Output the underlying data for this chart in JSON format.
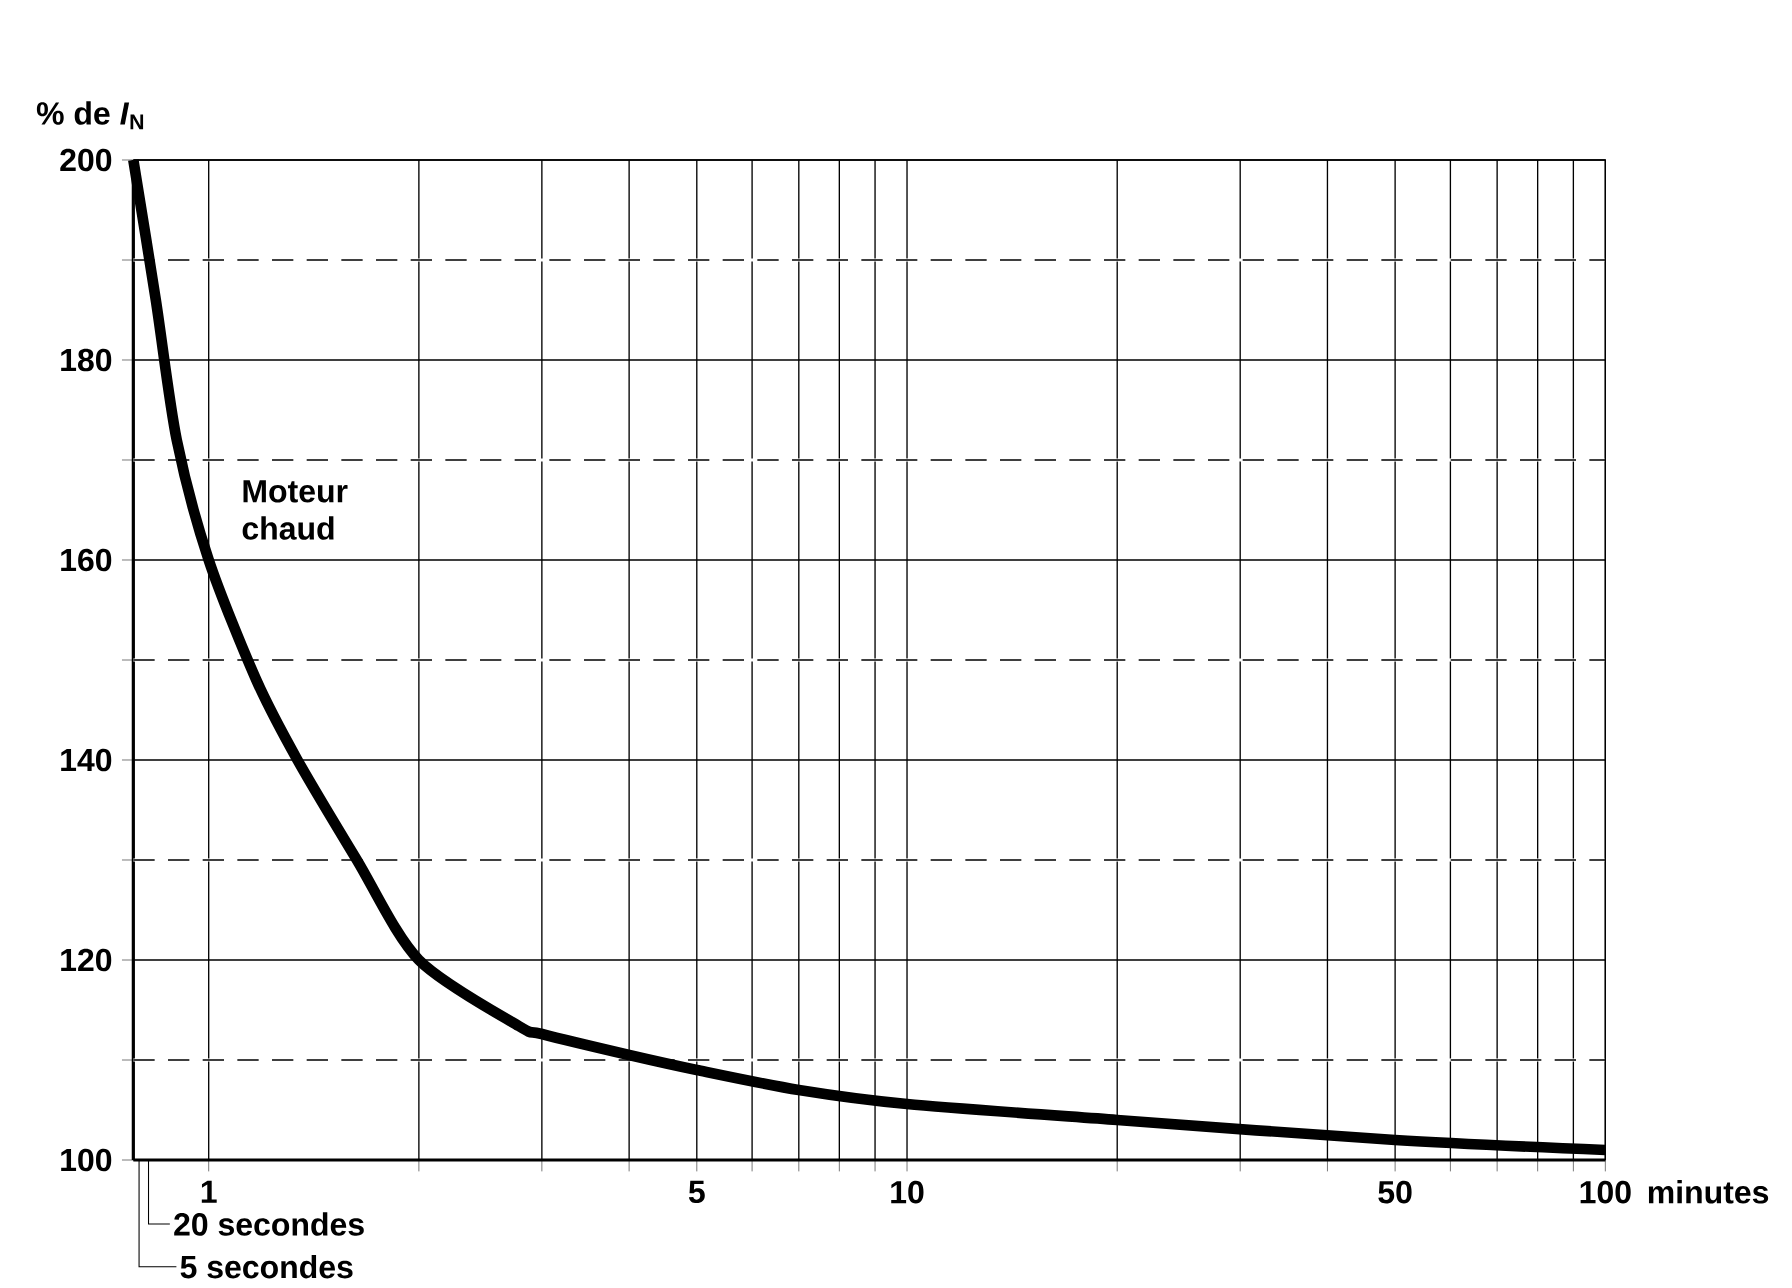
{
  "chart_data": {
    "type": "line",
    "xlabel": "minutes",
    "ylabel": "% de *I*$_{N}$",
    "log": "x",
    "grid": true,
    "color": "#000000",
    "x": [
      0.78,
      0.84,
      0.9,
      1,
      1.17,
      1.34,
      1.63,
      2,
      2.78,
      3,
      4,
      5,
      7,
      10,
      20,
      50,
      100
    ],
    "values": [
      200,
      186,
      172,
      160,
      148,
      140,
      130,
      120,
      113.4,
      112.6,
      110.5,
      109,
      107,
      105.6,
      104,
      102,
      101
    ],
    "xlim": [
      0.78,
      100
    ],
    "xticks": [
      1,
      {
        "value": 2,
        "label": null
      },
      {
        "value": 3,
        "label": null
      },
      {
        "value": 4,
        "label": null
      },
      5,
      {
        "value": 6,
        "label": null
      },
      {
        "value": 7,
        "label": null
      },
      {
        "value": 8,
        "label": null
      },
      {
        "value": 9,
        "label": null
      },
      10,
      {
        "value": 20,
        "label": null
      },
      {
        "value": 30,
        "label": null
      },
      {
        "value": 40,
        "label": null
      },
      50,
      {
        "value": 60,
        "label": null
      },
      {
        "value": 70,
        "label": null
      },
      {
        "value": 80,
        "label": null
      },
      {
        "value": 90,
        "label": null
      },
      100
    ],
    "ylim": [
      100,
      200
    ],
    "yticks": [
      100,
      {
        "value": 110,
        "label": null
      },
      120,
      {
        "value": 130,
        "label": null
      },
      140,
      {
        "value": 150,
        "label": null
      },
      160,
      {
        "value": 170,
        "label": null
      },
      180,
      {
        "value": 190,
        "label": null
      },
      200
    ],
    "annotations": [
      "Moteur chaud",
      "20 secondes",
      "5 secondes"
    ]
  }
}
